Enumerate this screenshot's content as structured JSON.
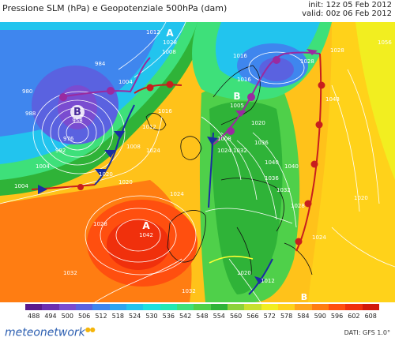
{
  "header": {
    "title": "Pressione SLM (hPa) e Geopotenziale 500hPa (dam)",
    "init": "init: 12z 05 Feb 2012",
    "valid": "valid: 00z 06 Feb 2012"
  },
  "pressure_centers": [
    {
      "letter": "A",
      "value": "1028"
    },
    {
      "letter": "B",
      "value": "958"
    },
    {
      "letter": "B",
      "value": "1005"
    },
    {
      "letter": "A",
      "value": "1042"
    },
    {
      "letter": "B",
      "value": ""
    }
  ],
  "isobar_labels": [
    "980",
    "984",
    "988",
    "992",
    "1004",
    "1004",
    "1012",
    "1008",
    "1016",
    "1020",
    "1008",
    "1012",
    "1020",
    "1016",
    "1024",
    "976",
    "1004",
    "1008",
    "1016",
    "1020",
    "1024",
    "1032",
    "1040",
    "1048",
    "1028",
    "1036",
    "1032",
    "1028",
    "1028",
    "1024",
    "1020",
    "1012",
    "1036",
    "1040",
    "1032",
    "1056",
    "1028",
    "1032",
    "1020",
    "1024"
  ],
  "legend": {
    "values": [
      "488",
      "494",
      "500",
      "506",
      "512",
      "518",
      "524",
      "530",
      "536",
      "542",
      "548",
      "554",
      "560",
      "566",
      "572",
      "578",
      "584",
      "590",
      "596",
      "602",
      "608"
    ],
    "colors": [
      "#5a1a8c",
      "#6b2fb0",
      "#7a4cd0",
      "#5a62e0",
      "#3f86ee",
      "#2ea5f0",
      "#22c4ee",
      "#1ee0e0",
      "#22e8b4",
      "#3ee07a",
      "#4fd04a",
      "#2fb338",
      "#8cd23a",
      "#c8e02e",
      "#f2ee20",
      "#ffd21a",
      "#ffa61a",
      "#ff7d12",
      "#ff4f0f",
      "#f0300c",
      "#d21a0a"
    ]
  },
  "footer": {
    "logo": "meteonetwork",
    "dati": "DATI: GFS 1.0°"
  }
}
